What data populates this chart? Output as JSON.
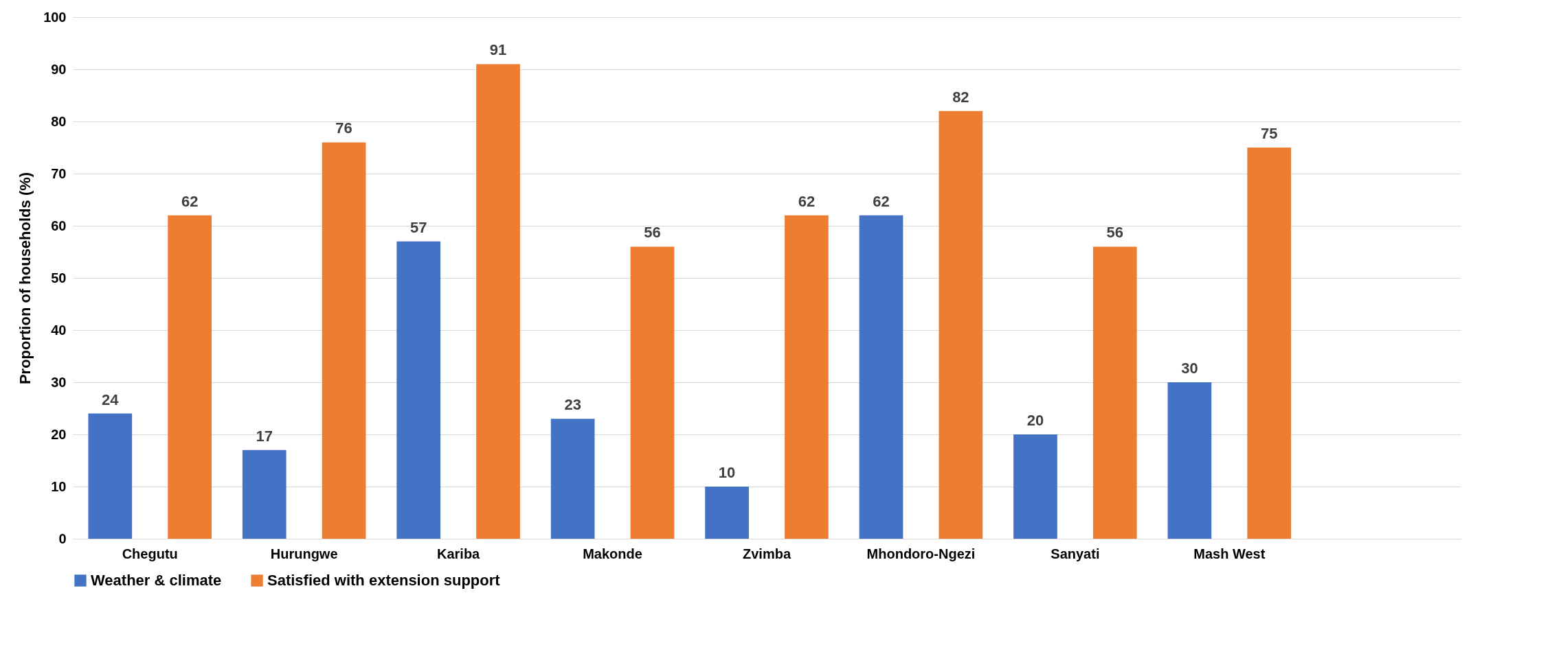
{
  "chart_data": {
    "type": "bar",
    "ylabel": "Proportion of households (%)",
    "categories": [
      "Chegutu",
      "Hurungwe",
      "Kariba",
      "Makonde",
      "Zvimba",
      "Mhondoro-Ngezi",
      "Sanyati",
      "Mash West",
      null
    ],
    "series": [
      {
        "name": "Weather & climate",
        "color": "#4472c4",
        "values": [
          24,
          17,
          57,
          23,
          10,
          62,
          20,
          30,
          null
        ]
      },
      {
        "name": "Satisfied with extension support",
        "color": "#ed7d31",
        "values": [
          62,
          76,
          91,
          56,
          62,
          82,
          56,
          75,
          null
        ]
      }
    ],
    "ylim": [
      0,
      100
    ],
    "yticks": [
      0,
      10,
      20,
      30,
      40,
      50,
      60,
      70,
      80,
      90,
      100
    ],
    "grid": "y",
    "legend": "bottom",
    "data_labels": true
  }
}
